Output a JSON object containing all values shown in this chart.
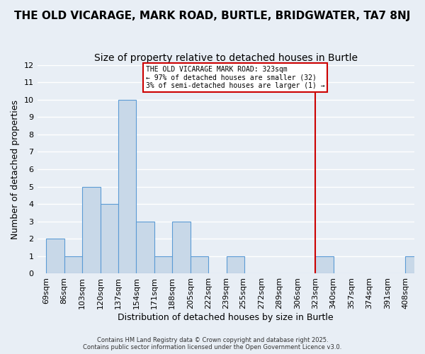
{
  "title": "THE OLD VICARAGE, MARK ROAD, BURTLE, BRIDGWATER, TA7 8NJ",
  "subtitle": "Size of property relative to detached houses in Burtle",
  "xlabel": "Distribution of detached houses by size in Burtle",
  "ylabel": "Number of detached properties",
  "bin_labels": [
    "69sqm",
    "86sqm",
    "103sqm",
    "120sqm",
    "137sqm",
    "154sqm",
    "171sqm",
    "188sqm",
    "205sqm",
    "222sqm",
    "239sqm",
    "255sqm",
    "272sqm",
    "289sqm",
    "306sqm",
    "323sqm",
    "340sqm",
    "357sqm",
    "374sqm",
    "391sqm",
    "408sqm"
  ],
  "bin_edges": [
    69,
    86,
    103,
    120,
    137,
    154,
    171,
    188,
    205,
    222,
    239,
    255,
    272,
    289,
    306,
    323,
    340,
    357,
    374,
    391,
    408
  ],
  "counts": [
    2,
    1,
    5,
    4,
    10,
    3,
    1,
    3,
    1,
    0,
    1,
    0,
    0,
    0,
    0,
    1,
    0,
    0,
    0,
    0,
    1
  ],
  "bar_color": "#c8d8e8",
  "bar_edge_color": "#5b9bd5",
  "bg_color": "#e8eef5",
  "grid_color": "#ffffff",
  "vline_x": 323,
  "vline_color": "#cc0000",
  "annotation_text": "THE OLD VICARAGE MARK ROAD: 323sqm\n← 97% of detached houses are smaller (32)\n3% of semi-detached houses are larger (1) →",
  "annotation_box_color": "#cc0000",
  "ylim": [
    0,
    12
  ],
  "yticks": [
    0,
    1,
    2,
    3,
    4,
    5,
    6,
    7,
    8,
    9,
    10,
    11,
    12
  ],
  "footer1": "Contains HM Land Registry data © Crown copyright and database right 2025.",
  "footer2": "Contains public sector information licensed under the Open Government Licence v3.0.",
  "title_fontsize": 11,
  "subtitle_fontsize": 10,
  "axis_fontsize": 9,
  "tick_fontsize": 8
}
